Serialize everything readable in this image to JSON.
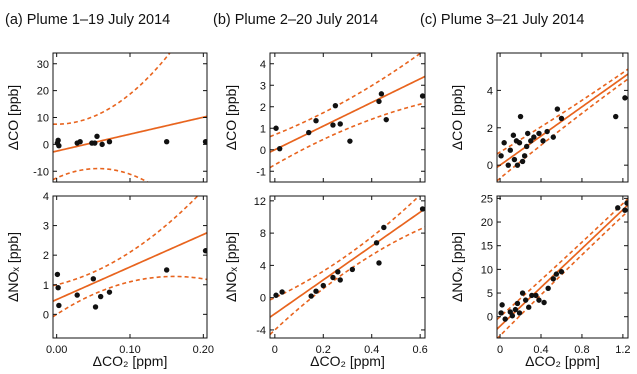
{
  "colors": {
    "fit": "#e8641e",
    "points": "#111111",
    "axes": "#111111"
  },
  "chart_data": [
    {
      "type": "scatter",
      "title": "(a) Plume 1–19 July 2014",
      "xlabel": "ΔCO₂ [ppm]",
      "xlim": [
        -0.005,
        0.205
      ],
      "xticks": [
        0.0,
        0.1,
        0.2
      ],
      "xtick_labels": [
        "0.00",
        "0.10",
        "0.20"
      ],
      "panels": [
        {
          "ylabel": "ΔCO [ppb]",
          "ylim": [
            -14,
            34
          ],
          "yticks": [
            -10,
            0,
            10,
            20,
            30
          ],
          "ytick_labels": [
            "-10",
            "0",
            "10",
            "20",
            "30"
          ],
          "points": [
            [
              0.001,
              0.5
            ],
            [
              0.002,
              1.5
            ],
            [
              0.003,
              -0.5
            ],
            [
              0.028,
              0.5
            ],
            [
              0.032,
              1.0
            ],
            [
              0.048,
              0.5
            ],
            [
              0.052,
              0.5
            ],
            [
              0.055,
              3.0
            ],
            [
              0.062,
              0.0
            ],
            [
              0.072,
              1.0
            ],
            [
              0.15,
              1.0
            ],
            [
              0.203,
              1.0
            ]
          ],
          "fit": {
            "intercept": -2.5,
            "slope": 63
          },
          "band_upper": {
            "intercept": 7.5,
            "slope": 2,
            "quad": 1100
          },
          "band_lower": {
            "intercept": -12.5,
            "slope": 124,
            "quad": -1100
          }
        },
        {
          "ylabel": "ΔNOₓ [ppb]",
          "ylim": [
            -0.8,
            4.0
          ],
          "yticks": [
            0,
            1,
            2,
            3,
            4
          ],
          "ytick_labels": [
            "0",
            "1",
            "2",
            "3",
            "4"
          ],
          "points": [
            [
              0.001,
              1.35
            ],
            [
              0.002,
              0.9
            ],
            [
              0.003,
              0.3
            ],
            [
              0.028,
              0.65
            ],
            [
              0.05,
              1.2
            ],
            [
              0.053,
              0.25
            ],
            [
              0.06,
              0.6
            ],
            [
              0.072,
              0.75
            ],
            [
              0.15,
              1.5
            ],
            [
              0.203,
              2.15
            ]
          ],
          "fit": {
            "intercept": 0.5,
            "slope": 11
          },
          "band_upper": {
            "intercept": 1.0,
            "slope": 6,
            "quad": 50
          },
          "band_lower": {
            "intercept": 0.0,
            "slope": 16,
            "quad": -50
          }
        }
      ]
    },
    {
      "type": "scatter",
      "title": "(b) Plume 2–20 July 2014",
      "xlabel": "ΔCO₂ [ppm]",
      "xlim": [
        -0.02,
        0.62
      ],
      "xticks": [
        0.0,
        0.2,
        0.4,
        0.6
      ],
      "xtick_labels": [
        "0",
        "0.2",
        "0.4",
        "0.6"
      ],
      "panels": [
        {
          "ylabel": "ΔCO [ppb]",
          "ylim": [
            -1.5,
            4.5
          ],
          "yticks": [
            -1,
            0,
            1,
            2,
            3,
            4
          ],
          "ytick_labels": [
            "-1",
            "0",
            "1",
            "2",
            "3",
            "4"
          ],
          "points": [
            [
              0.005,
              1.0
            ],
            [
              0.02,
              0.05
            ],
            [
              0.14,
              0.8
            ],
            [
              0.17,
              1.35
            ],
            [
              0.24,
              1.15
            ],
            [
              0.25,
              2.05
            ],
            [
              0.27,
              1.2
            ],
            [
              0.31,
              0.4
            ],
            [
              0.43,
              2.25
            ],
            [
              0.44,
              2.6
            ],
            [
              0.46,
              1.4
            ],
            [
              0.61,
              2.5
            ]
          ],
          "fit": {
            "intercept": 0.0,
            "slope": 5.5
          },
          "band_upper": {
            "intercept": 0.7,
            "slope": 4.5,
            "quad": 3
          },
          "band_lower": {
            "intercept": -0.7,
            "slope": 6.5,
            "quad": -3
          }
        },
        {
          "ylabel": "ΔNOₓ [ppb]",
          "ylim": [
            -5,
            12.6
          ],
          "yticks": [
            -4,
            0,
            4,
            8,
            12
          ],
          "ytick_labels": [
            "-4",
            "0",
            "4",
            "8",
            "12"
          ],
          "points": [
            [
              0.005,
              0.3
            ],
            [
              0.03,
              0.7
            ],
            [
              0.15,
              0.2
            ],
            [
              0.17,
              0.8
            ],
            [
              0.2,
              1.5
            ],
            [
              0.24,
              2.5
            ],
            [
              0.26,
              3.2
            ],
            [
              0.27,
              2.2
            ],
            [
              0.32,
              3.5
            ],
            [
              0.42,
              6.8
            ],
            [
              0.43,
              4.3
            ],
            [
              0.45,
              8.7
            ],
            [
              0.61,
              11.0
            ]
          ],
          "fit": {
            "intercept": -2.0,
            "slope": 21
          },
          "band_upper": {
            "intercept": 0.0,
            "slope": 14,
            "quad": 12
          },
          "band_lower": {
            "intercept": -4.0,
            "slope": 28,
            "quad": -12
          }
        }
      ]
    },
    {
      "type": "scatter",
      "title": "(c) Plume 3–21 July 2014",
      "xlabel": "ΔCO₂ [ppm]",
      "xlim": [
        -0.03,
        1.25
      ],
      "xticks": [
        0.0,
        0.4,
        0.8,
        1.2
      ],
      "xtick_labels": [
        "0",
        "0.4",
        "0.8",
        "1.2"
      ],
      "panels": [
        {
          "ylabel": "ΔCO [ppb]",
          "ylim": [
            -0.9,
            6.0
          ],
          "yticks": [
            0,
            2,
            4
          ],
          "ytick_labels": [
            "0",
            "2",
            "4"
          ],
          "points": [
            [
              0.01,
              0.5
            ],
            [
              0.04,
              1.2
            ],
            [
              0.08,
              0.0
            ],
            [
              0.1,
              0.8
            ],
            [
              0.13,
              1.6
            ],
            [
              0.14,
              0.3
            ],
            [
              0.16,
              1.3
            ],
            [
              0.17,
              0.0
            ],
            [
              0.19,
              1.2
            ],
            [
              0.2,
              2.6
            ],
            [
              0.22,
              0.2
            ],
            [
              0.24,
              0.5
            ],
            [
              0.26,
              1.0
            ],
            [
              0.27,
              1.7
            ],
            [
              0.3,
              1.3
            ],
            [
              0.33,
              1.5
            ],
            [
              0.38,
              1.7
            ],
            [
              0.42,
              1.3
            ],
            [
              0.46,
              1.8
            ],
            [
              0.52,
              1.5
            ],
            [
              0.56,
              3.0
            ],
            [
              0.6,
              2.5
            ],
            [
              1.13,
              2.6
            ],
            [
              1.22,
              3.6
            ]
          ],
          "fit": {
            "intercept": 0.0,
            "slope": 3.9
          },
          "band_upper": {
            "intercept": 0.7,
            "slope": 3.3,
            "quad": 0.2
          },
          "band_lower": {
            "intercept": -0.7,
            "slope": 4.5,
            "quad": -0.2
          }
        },
        {
          "ylabel": "ΔNOₓ [ppb]",
          "ylim": [
            -4.5,
            25.5
          ],
          "yticks": [
            0,
            5,
            10,
            15,
            20,
            25
          ],
          "ytick_labels": [
            "0",
            "5",
            "10",
            "15",
            "20",
            "25"
          ],
          "points": [
            [
              0.01,
              0.8
            ],
            [
              0.02,
              2.5
            ],
            [
              0.05,
              -0.5
            ],
            [
              0.1,
              1.0
            ],
            [
              0.12,
              0.2
            ],
            [
              0.15,
              1.5
            ],
            [
              0.17,
              2.8
            ],
            [
              0.19,
              0.8
            ],
            [
              0.22,
              5.0
            ],
            [
              0.25,
              3.5
            ],
            [
              0.28,
              2.0
            ],
            [
              0.31,
              4.5
            ],
            [
              0.35,
              4.5
            ],
            [
              0.38,
              3.5
            ],
            [
              0.43,
              3.0
            ],
            [
              0.47,
              6.0
            ],
            [
              0.52,
              8.0
            ],
            [
              0.55,
              9.0
            ],
            [
              0.6,
              9.5
            ],
            [
              1.15,
              23.0
            ],
            [
              1.22,
              22.5
            ],
            [
              1.24,
              24.0
            ]
          ],
          "fit": {
            "intercept": -2.0,
            "slope": 20.5
          },
          "band_upper": {
            "intercept": 0.0,
            "slope": 19.2,
            "quad": 0.6
          },
          "band_lower": {
            "intercept": -4.0,
            "slope": 21.8,
            "quad": -0.6
          }
        }
      ]
    }
  ]
}
